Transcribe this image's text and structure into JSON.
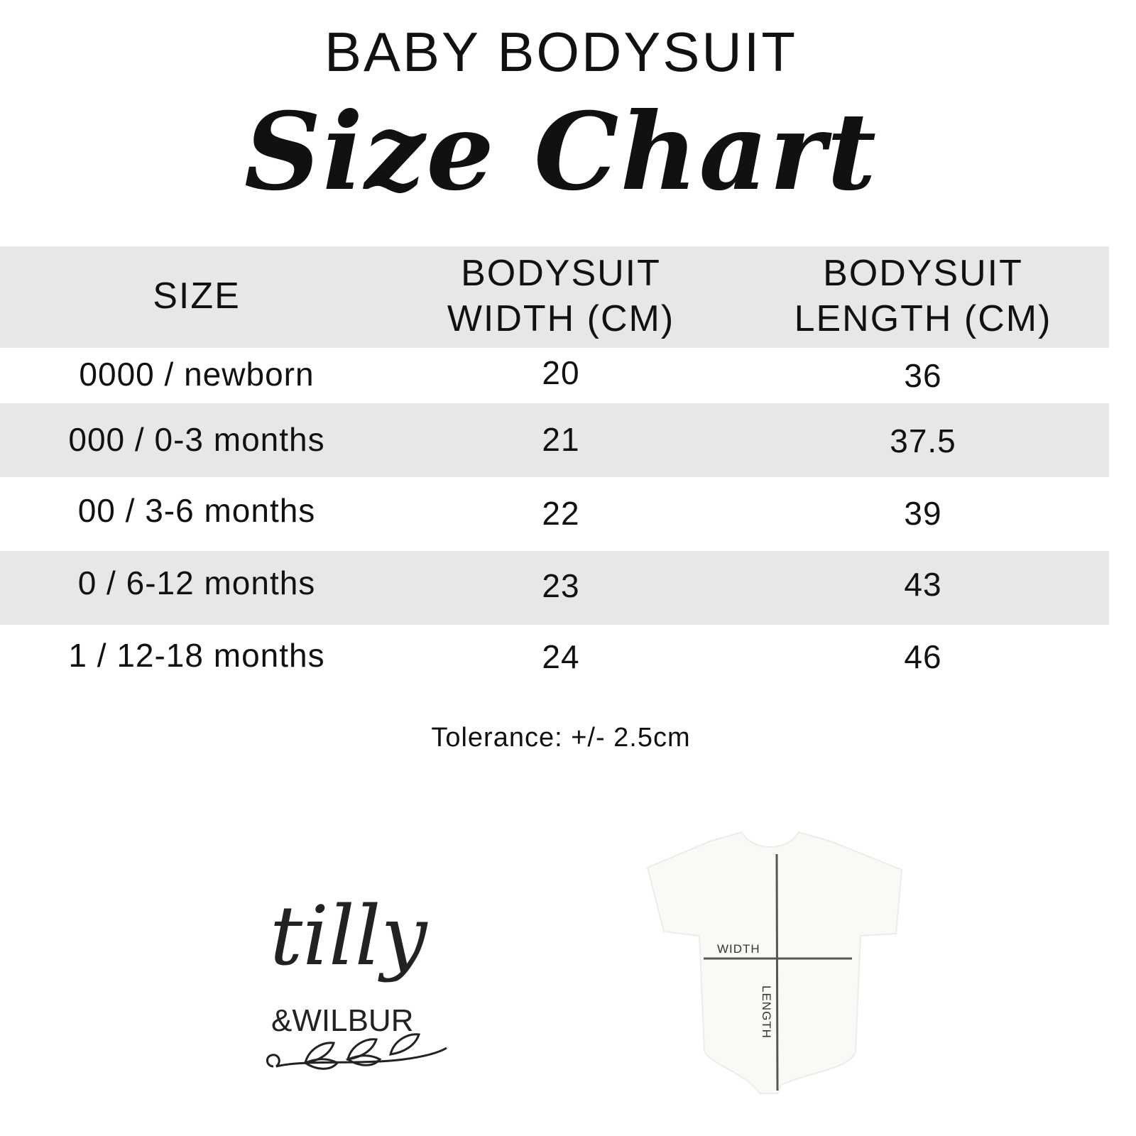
{
  "header": {
    "subtitle": "BABY BODYSUIT",
    "title": "Size Chart"
  },
  "table": {
    "columns": [
      "SIZE",
      "BODYSUIT WIDTH (CM)",
      "BODYSUIT LENGTH (CM)"
    ],
    "column_lines": [
      [
        "SIZE"
      ],
      [
        "BODYSUIT",
        "WIDTH (CM)"
      ],
      [
        "BODYSUIT",
        "LENGTH (CM)"
      ]
    ],
    "rows": [
      [
        "0000 / newborn",
        "20",
        "36"
      ],
      [
        "000 / 0-3 months",
        "21",
        "37.5"
      ],
      [
        "00 / 3-6 months",
        "22",
        "39"
      ],
      [
        "0 / 6-12 months",
        "23",
        "43"
      ],
      [
        "1 / 12-18 months",
        "24",
        "46"
      ]
    ]
  },
  "tolerance": "Tolerance: +/- 2.5cm",
  "logo": {
    "line1": "tilly",
    "line2": "&WILBUR"
  },
  "diagram": {
    "width_label": "WIDTH",
    "length_label": "LENGTH"
  },
  "colors": {
    "stripe": "#e6e7e9",
    "text": "#111111",
    "measure_line": "#555555"
  }
}
